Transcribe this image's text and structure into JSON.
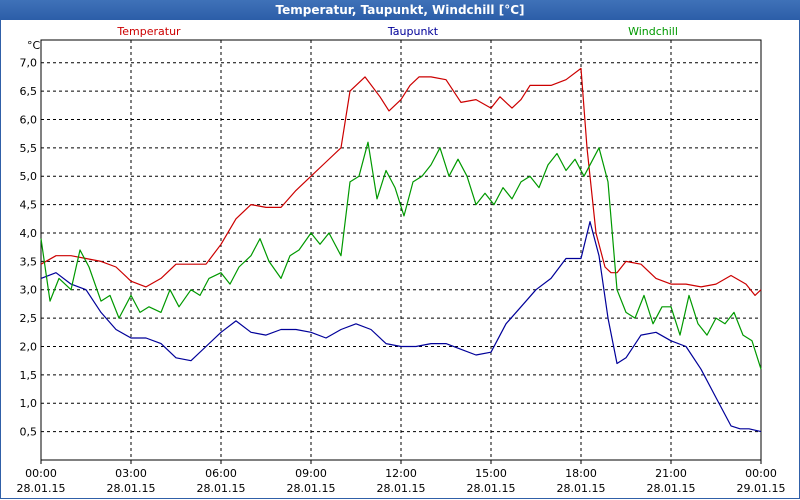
{
  "window": {
    "title": "Temperatur, Taupunkt, Windchill [°C]"
  },
  "chart_data": {
    "type": "line",
    "title": "Temperatur, Taupunkt, Windchill [°C]",
    "ylabel": "°C",
    "xlabel": "",
    "ylim": [
      0,
      7.4
    ],
    "y_ticks": [
      "0,5",
      "1,0",
      "1,5",
      "2,0",
      "2,5",
      "3,0",
      "3,5",
      "4,0",
      "4,5",
      "5,0",
      "5,5",
      "6,0",
      "6,5",
      "7,0"
    ],
    "x_ticks": [
      {
        "time": "00:00",
        "date": "28.01.15"
      },
      {
        "time": "03:00",
        "date": "28.01.15"
      },
      {
        "time": "06:00",
        "date": "28.01.15"
      },
      {
        "time": "09:00",
        "date": "28.01.15"
      },
      {
        "time": "12:00",
        "date": "28.01.15"
      },
      {
        "time": "15:00",
        "date": "28.01.15"
      },
      {
        "time": "18:00",
        "date": "28.01.15"
      },
      {
        "time": "21:00",
        "date": "28.01.15"
      },
      {
        "time": "00:00",
        "date": "29.01.15"
      }
    ],
    "x_unit": "hours since 28.01.15 00:00",
    "xlim": [
      0,
      24
    ],
    "grid": true,
    "series": [
      {
        "name": "Temperatur",
        "color": "#cc0000",
        "x": [
          0,
          0.5,
          1,
          1.5,
          2,
          2.5,
          3,
          3.5,
          4,
          4.5,
          5,
          5.5,
          6,
          6.5,
          7,
          7.5,
          8,
          8.5,
          9,
          9.5,
          10,
          10.3,
          10.8,
          11.3,
          11.6,
          12,
          12.3,
          12.6,
          13,
          13.5,
          14,
          14.5,
          15,
          15.3,
          15.7,
          16,
          16.3,
          16.6,
          17,
          17.5,
          18,
          18.2,
          18.5,
          18.8,
          19,
          19.2,
          19.5,
          20,
          20.5,
          21,
          21.5,
          22,
          22.5,
          23,
          23.5,
          23.8,
          24
        ],
        "values": [
          3.45,
          3.6,
          3.6,
          3.55,
          3.5,
          3.4,
          3.15,
          3.05,
          3.2,
          3.45,
          3.45,
          3.45,
          3.8,
          4.25,
          4.5,
          4.45,
          4.45,
          4.75,
          5.0,
          5.25,
          5.5,
          6.5,
          6.75,
          6.4,
          6.15,
          6.35,
          6.6,
          6.75,
          6.75,
          6.7,
          6.3,
          6.35,
          6.2,
          6.4,
          6.2,
          6.35,
          6.6,
          6.6,
          6.6,
          6.7,
          6.9,
          5.5,
          4.0,
          3.4,
          3.3,
          3.3,
          3.5,
          3.45,
          3.2,
          3.1,
          3.1,
          3.05,
          3.1,
          3.25,
          3.1,
          2.9,
          3.0
        ]
      },
      {
        "name": "Taupunkt",
        "color": "#000099",
        "x": [
          0,
          0.5,
          1,
          1.5,
          2,
          2.5,
          3,
          3.5,
          4,
          4.5,
          5,
          5.5,
          6,
          6.5,
          7,
          7.5,
          8,
          8.5,
          9,
          9.5,
          10,
          10.5,
          11,
          11.5,
          12,
          12.5,
          13,
          13.5,
          14,
          14.5,
          15,
          15.5,
          16,
          16.5,
          17,
          17.5,
          18,
          18.3,
          18.6,
          18.9,
          19.2,
          19.5,
          20,
          20.5,
          21,
          21.5,
          22,
          22.5,
          23,
          23.3,
          23.6,
          24
        ],
        "values": [
          3.2,
          3.3,
          3.1,
          3.0,
          2.6,
          2.3,
          2.15,
          2.15,
          2.05,
          1.8,
          1.75,
          2.0,
          2.25,
          2.45,
          2.25,
          2.2,
          2.3,
          2.3,
          2.25,
          2.15,
          2.3,
          2.4,
          2.3,
          2.05,
          2.0,
          2.0,
          2.05,
          2.05,
          1.95,
          1.85,
          1.9,
          2.4,
          2.7,
          3.0,
          3.2,
          3.55,
          3.55,
          4.2,
          3.6,
          2.5,
          1.7,
          1.8,
          2.2,
          2.25,
          2.1,
          2.0,
          1.6,
          1.1,
          0.6,
          0.55,
          0.55,
          0.5
        ]
      },
      {
        "name": "Windchill",
        "color": "#009900",
        "x": [
          0,
          0.3,
          0.6,
          1,
          1.3,
          1.6,
          2,
          2.3,
          2.6,
          3,
          3.3,
          3.6,
          4,
          4.3,
          4.6,
          5,
          5.3,
          5.6,
          6,
          6.3,
          6.6,
          7,
          7.3,
          7.6,
          8,
          8.3,
          8.6,
          9,
          9.3,
          9.6,
          10,
          10.3,
          10.6,
          10.9,
          11.2,
          11.5,
          11.8,
          12.1,
          12.4,
          12.7,
          13,
          13.3,
          13.6,
          13.9,
          14.2,
          14.5,
          14.8,
          15.1,
          15.4,
          15.7,
          16,
          16.3,
          16.6,
          16.9,
          17.2,
          17.5,
          17.8,
          18.1,
          18.4,
          18.6,
          18.9,
          19.2,
          19.5,
          19.8,
          20.1,
          20.4,
          20.7,
          21,
          21.3,
          21.6,
          21.9,
          22.2,
          22.5,
          22.8,
          23.1,
          23.4,
          23.7,
          24
        ],
        "values": [
          3.9,
          2.8,
          3.2,
          3.0,
          3.7,
          3.4,
          2.8,
          2.9,
          2.5,
          2.9,
          2.6,
          2.7,
          2.6,
          3.0,
          2.7,
          3.0,
          2.9,
          3.2,
          3.3,
          3.1,
          3.4,
          3.6,
          3.9,
          3.5,
          3.2,
          3.6,
          3.7,
          4.0,
          3.8,
          4.0,
          3.6,
          4.9,
          5.0,
          5.6,
          4.6,
          5.1,
          4.8,
          4.3,
          4.9,
          5.0,
          5.2,
          5.5,
          5.0,
          5.3,
          5.0,
          4.5,
          4.7,
          4.5,
          4.8,
          4.6,
          4.9,
          5.0,
          4.8,
          5.2,
          5.4,
          5.1,
          5.3,
          5.0,
          5.3,
          5.5,
          4.9,
          3.0,
          2.6,
          2.5,
          2.9,
          2.4,
          2.7,
          2.7,
          2.2,
          2.9,
          2.4,
          2.2,
          2.5,
          2.4,
          2.6,
          2.2,
          2.1,
          1.6
        ]
      }
    ]
  }
}
